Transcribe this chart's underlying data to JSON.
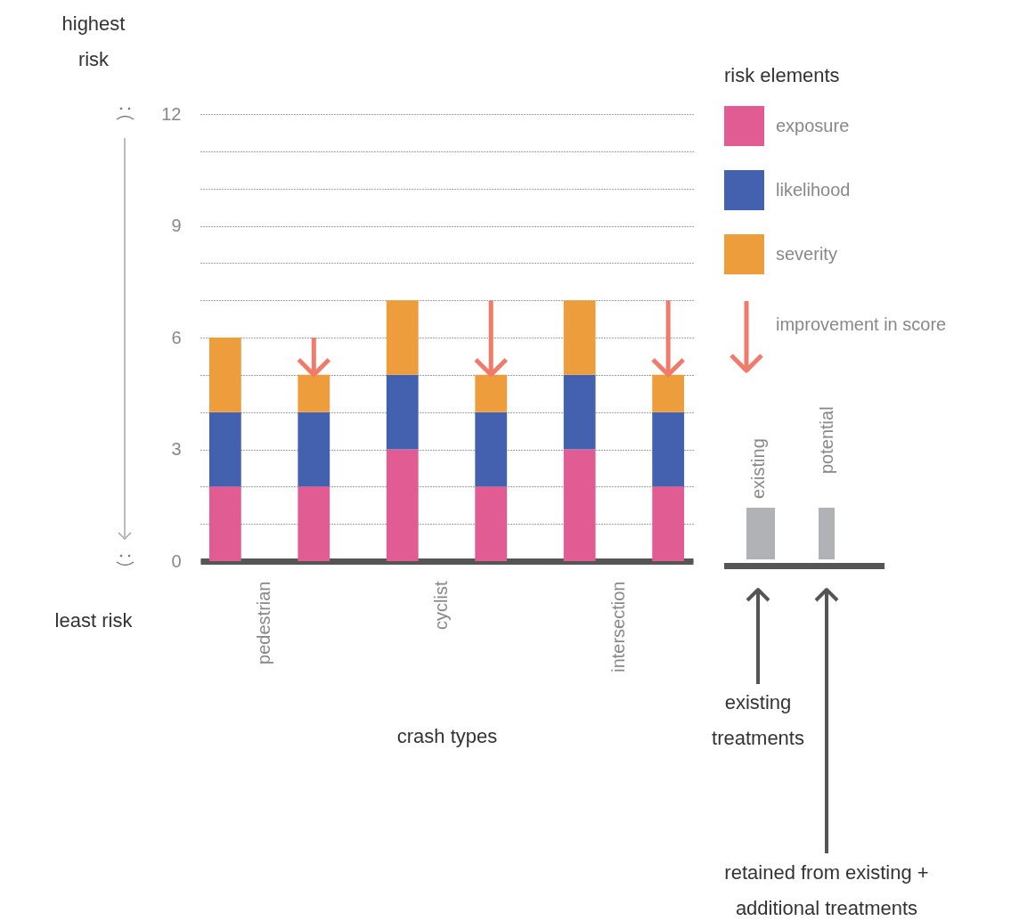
{
  "chart_data": {
    "type": "bar",
    "stacked": true,
    "xlabel": "crash types",
    "legend_title": "risk elements",
    "legend": "top right",
    "grid": "y",
    "categories": [
      "pedestrian",
      null,
      "cyclist",
      null,
      "intersection",
      null
    ],
    "series": [
      {
        "name": "exposure",
        "color": "#e05c92",
        "values": [
          2,
          2,
          3,
          2,
          3,
          2
        ]
      },
      {
        "name": "likelihood",
        "color": "#4461b0",
        "values": [
          2,
          2,
          2,
          2,
          2,
          2
        ]
      },
      {
        "name": "severity",
        "color": "#ee9d3d",
        "values": [
          2,
          1,
          2,
          1,
          2,
          1
        ]
      }
    ],
    "ylim": [
      0,
      12
    ],
    "yticks": [
      0,
      {
        "value": 1,
        "label": null
      },
      {
        "value": 2,
        "label": null
      },
      3,
      {
        "value": 4,
        "label": null
      },
      {
        "value": 5,
        "label": null
      },
      6,
      {
        "value": 7,
        "label": null
      },
      {
        "value": 8,
        "label": null
      },
      9,
      {
        "value": 10,
        "label": null
      },
      {
        "value": 11,
        "label": null
      },
      12
    ],
    "annotations": [
      "highest risk",
      "least risk",
      "improvement in score",
      "existing",
      "potential",
      "existing treatments",
      "retained from existing + additional treatments"
    ]
  }
}
